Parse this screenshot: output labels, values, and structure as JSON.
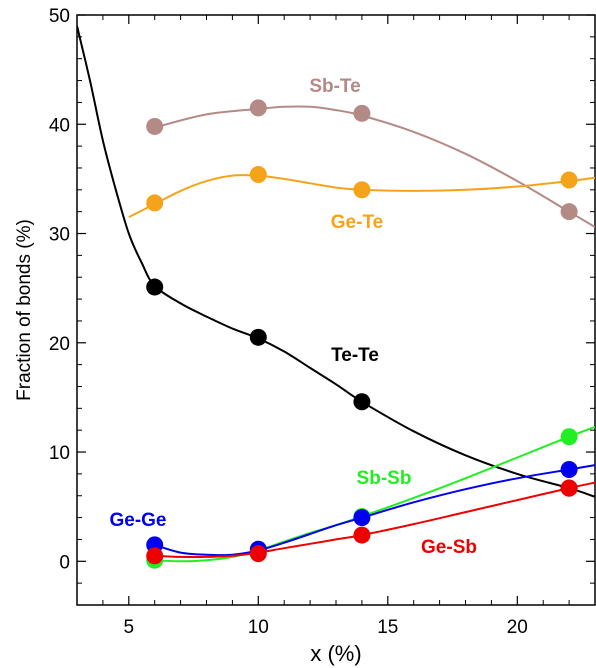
{
  "chart_data": {
    "type": "line",
    "xlabel": "x (%)",
    "ylabel": "Fraction of bonds (%)",
    "xlim": [
      3,
      23
    ],
    "ylim": [
      -4,
      50
    ],
    "xticks": [
      5,
      10,
      15,
      20
    ],
    "yticks": [
      0,
      10,
      20,
      30,
      40,
      50
    ],
    "grid": false,
    "series": [
      {
        "name": "Sb-Te",
        "color": "#b48a86",
        "x": [
          6,
          10,
          14,
          22
        ],
        "values": [
          39.8,
          41.5,
          41.0,
          32.0
        ],
        "curve": [
          [
            6,
            39.7
          ],
          [
            8,
            40.9
          ],
          [
            10,
            41.4
          ],
          [
            11,
            41.6
          ],
          [
            12,
            41.6
          ],
          [
            13,
            41.3
          ],
          [
            14,
            40.8
          ],
          [
            16,
            39.3
          ],
          [
            18,
            37.3
          ],
          [
            20,
            34.8
          ],
          [
            22,
            32.0
          ],
          [
            23,
            30.6
          ]
        ]
      },
      {
        "name": "Ge-Te",
        "color": "#f5a31a",
        "x": [
          6,
          10,
          14,
          22
        ],
        "values": [
          32.8,
          35.4,
          34.0,
          34.9
        ],
        "curve": [
          [
            5,
            31.5
          ],
          [
            6,
            32.7
          ],
          [
            7,
            33.9
          ],
          [
            8,
            34.8
          ],
          [
            9,
            35.3
          ],
          [
            10,
            35.3
          ],
          [
            11,
            35.0
          ],
          [
            12,
            34.6
          ],
          [
            13,
            34.2
          ],
          [
            14,
            34.0
          ],
          [
            16,
            33.9
          ],
          [
            18,
            34.0
          ],
          [
            20,
            34.3
          ],
          [
            22,
            34.8
          ],
          [
            23,
            35.1
          ]
        ]
      },
      {
        "name": "Te-Te",
        "color": "#000000",
        "x": [
          6,
          10,
          14,
          22
        ],
        "values": [
          25.1,
          20.5,
          14.6,
          6.7
        ],
        "curve": [
          [
            3,
            49.0
          ],
          [
            3.5,
            44.0
          ],
          [
            4,
            38.5
          ],
          [
            4.5,
            34.0
          ],
          [
            5,
            30.0
          ],
          [
            5.5,
            27.3
          ],
          [
            6,
            25.2
          ],
          [
            7,
            23.6
          ],
          [
            8,
            22.4
          ],
          [
            9,
            21.3
          ],
          [
            10,
            20.4
          ],
          [
            11,
            19.2
          ],
          [
            12,
            17.7
          ],
          [
            13,
            16.2
          ],
          [
            14,
            14.6
          ],
          [
            16,
            11.9
          ],
          [
            18,
            9.7
          ],
          [
            20,
            8.0
          ],
          [
            22,
            6.7
          ],
          [
            23,
            5.9
          ]
        ]
      },
      {
        "name": "Sb-Sb",
        "color": "#22ee22",
        "x": [
          6,
          10,
          14,
          22
        ],
        "values": [
          0.1,
          1.0,
          4.1,
          11.4
        ],
        "curve": [
          [
            6,
            0.1
          ],
          [
            7,
            0.0
          ],
          [
            8,
            0.1
          ],
          [
            9,
            0.4
          ],
          [
            10,
            1.0
          ],
          [
            11,
            1.8
          ],
          [
            12,
            2.6
          ],
          [
            13,
            3.3
          ],
          [
            14,
            4.1
          ],
          [
            16,
            5.8
          ],
          [
            18,
            7.6
          ],
          [
            20,
            9.5
          ],
          [
            22,
            11.4
          ],
          [
            23,
            12.3
          ]
        ]
      },
      {
        "name": "Ge-Ge",
        "color": "#0000ee",
        "x": [
          6,
          10,
          14,
          22
        ],
        "values": [
          1.5,
          1.1,
          4.0,
          8.4
        ],
        "curve": [
          [
            6,
            1.5
          ],
          [
            7,
            0.8
          ],
          [
            8,
            0.6
          ],
          [
            9,
            0.6
          ],
          [
            10,
            1.0
          ],
          [
            11,
            1.7
          ],
          [
            12,
            2.5
          ],
          [
            13,
            3.3
          ],
          [
            14,
            4.0
          ],
          [
            16,
            5.4
          ],
          [
            18,
            6.6
          ],
          [
            20,
            7.6
          ],
          [
            22,
            8.4
          ],
          [
            23,
            8.8
          ]
        ]
      },
      {
        "name": "Ge-Sb",
        "color": "#ee0000",
        "x": [
          6,
          10,
          14,
          22
        ],
        "values": [
          0.5,
          0.7,
          2.4,
          6.7
        ],
        "curve": [
          [
            6,
            0.5
          ],
          [
            7,
            0.4
          ],
          [
            8,
            0.4
          ],
          [
            9,
            0.5
          ],
          [
            10,
            0.8
          ],
          [
            11,
            1.2
          ],
          [
            12,
            1.6
          ],
          [
            13,
            2.0
          ],
          [
            14,
            2.4
          ],
          [
            16,
            3.4
          ],
          [
            18,
            4.5
          ],
          [
            20,
            5.6
          ],
          [
            22,
            6.7
          ],
          [
            23,
            7.2
          ]
        ]
      }
    ]
  }
}
